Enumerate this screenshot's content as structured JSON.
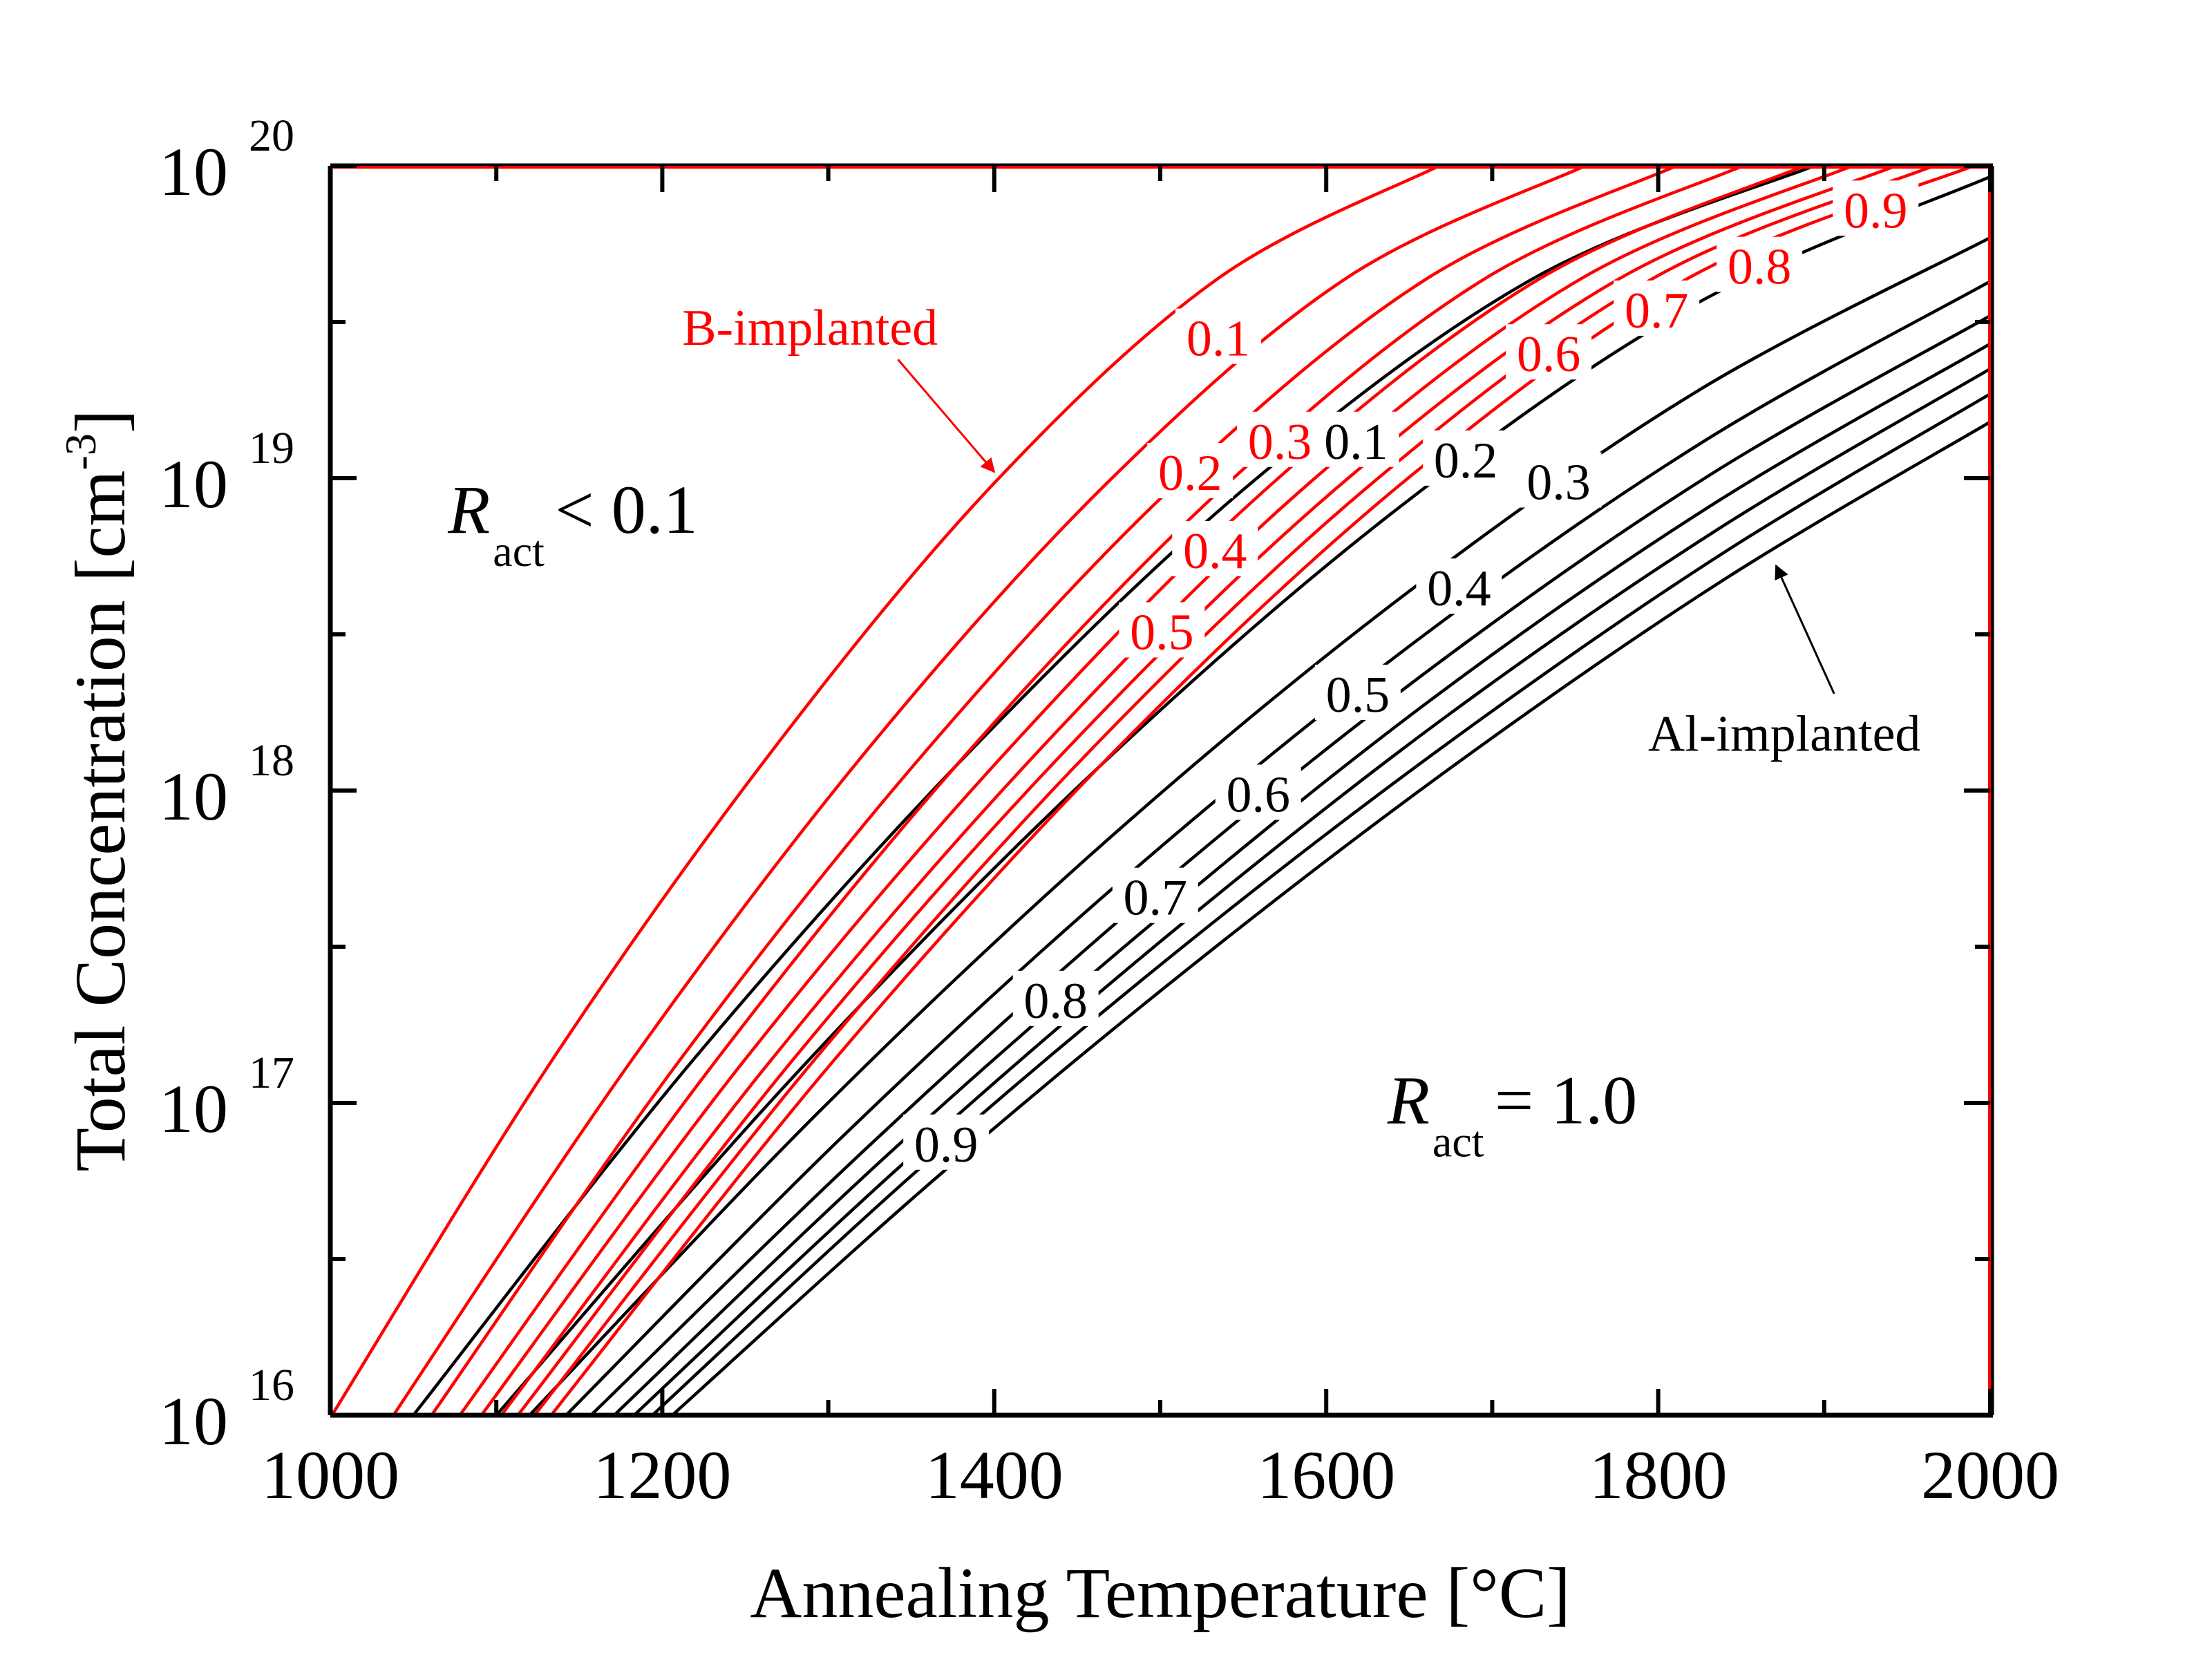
{
  "chart_data": {
    "type": "line",
    "subtype": "contour",
    "title": "",
    "xlabel": "Annealing Temperature [°C]",
    "ylabel_main": "Total Concentration [cm",
    "ylabel_sup": "-3",
    "ylabel_close": "]",
    "xlim": [
      1000,
      2000
    ],
    "ylim_log10": [
      16,
      20
    ],
    "yscale": "log",
    "grid": false,
    "x_ticks": [
      1000,
      1200,
      1400,
      1600,
      1800,
      2000
    ],
    "x_tick_labels": [
      "1000",
      "1200",
      "1400",
      "1600",
      "1800",
      "2000"
    ],
    "y_ticks_log10": [
      16,
      17,
      18,
      19,
      20
    ],
    "y_tick_base": "10",
    "y_tick_exponents": [
      "16",
      "17",
      "18",
      "19",
      "20"
    ],
    "colors": {
      "B": "#ff0000",
      "Al": "#000000",
      "axis": "#000000"
    },
    "series": [
      {
        "name": "B-implanted",
        "color": "#ff0000",
        "contours": [
          {
            "level": "0.1",
            "points": [
              [
                1001,
                16
              ],
              [
                1134,
                17.14
              ],
              [
                1268,
                18.14
              ],
              [
                1401,
                18.99
              ],
              [
                1535,
                19.64
              ],
              [
                1668,
                20
              ]
            ],
            "label_at": [
              1535,
              19.45
            ]
          },
          {
            "level": "0.2",
            "points": [
              [
                1038,
                16
              ],
              [
                1182,
                17.14
              ],
              [
                1325,
                18.14
              ],
              [
                1469,
                18.99
              ],
              [
                1612,
                19.64
              ],
              [
                1756,
                20
              ]
            ],
            "label_at": [
              1518,
              19.02
            ]
          },
          {
            "level": "0.3",
            "points": [
              [
                1061,
                16
              ],
              [
                1211,
                17.14
              ],
              [
                1361,
                18.14
              ],
              [
                1511,
                18.99
              ],
              [
                1661,
                19.64
              ],
              [
                1811,
                20
              ]
            ],
            "label_at": [
              1572,
              19.12
            ]
          },
          {
            "level": "0.4",
            "points": [
              [
                1078,
                16
              ],
              [
                1233,
                17.14
              ],
              [
                1387,
                18.14
              ],
              [
                1542,
                18.99
              ],
              [
                1696,
                19.64
              ],
              [
                1851,
                20
              ]
            ],
            "label_at": [
              1533,
              18.77
            ]
          },
          {
            "level": "0.5",
            "points": [
              [
                1091,
                16
              ],
              [
                1250,
                17.14
              ],
              [
                1410,
                18.14
              ],
              [
                1569,
                18.99
              ],
              [
                1729,
                19.64
              ],
              [
                1888,
                20
              ]
            ],
            "label_at": [
              1501,
              18.51
            ]
          },
          {
            "level": "0.6",
            "points": [
              [
                1103,
                16
              ],
              [
                1266,
                17.14
              ],
              [
                1429,
                18.14
              ],
              [
                1591,
                18.99
              ],
              [
                1754,
                19.64
              ],
              [
                1917,
                20
              ]
            ],
            "label_at": [
              1734,
              19.4
            ]
          },
          {
            "level": "0.7",
            "points": [
              [
                1113,
                16
              ],
              [
                1279,
                17.14
              ],
              [
                1445,
                18.14
              ],
              [
                1611,
                18.99
              ],
              [
                1777,
                19.64
              ],
              [
                1943,
                20
              ]
            ],
            "label_at": [
              1799,
              19.54
            ]
          },
          {
            "level": "0.8",
            "points": [
              [
                1123,
                16
              ],
              [
                1292,
                17.14
              ],
              [
                1460,
                18.14
              ],
              [
                1629,
                18.99
              ],
              [
                1797,
                19.64
              ],
              [
                1966,
                20
              ]
            ],
            "label_at": [
              1861,
              19.68
            ]
          },
          {
            "level": "0.9",
            "points": [
              [
                1133,
                16
              ],
              [
                1304,
                17.14
              ],
              [
                1475,
                18.14
              ],
              [
                1647,
                18.99
              ],
              [
                1818,
                19.64
              ],
              [
                1990,
                20
              ]
            ],
            "label_at": [
              1931,
              19.86
            ]
          }
        ]
      },
      {
        "name": "Al-implanted",
        "color": "#000000",
        "contours": [
          {
            "level": "0.1",
            "points": [
              [
                1050,
                16
              ],
              [
                1219,
                17.14
              ],
              [
                1388,
                18.14
              ],
              [
                1556,
                18.99
              ],
              [
                1725,
                19.64
              ],
              [
                1894,
                20
              ]
            ],
            "label_at": [
              1618,
              19.12
            ]
          },
          {
            "level": "0.2",
            "points": [
              [
                1100,
                16
              ],
              [
                1280,
                17.09
              ],
              [
                1460,
                18.06
              ],
              [
                1640,
                18.89
              ],
              [
                1820,
                19.55
              ],
              [
                2000,
                19.965
              ]
            ],
            "label_at": [
              1684,
              19.06
            ]
          },
          {
            "level": "0.3",
            "points": [
              [
                1120,
                16
              ],
              [
                1296,
                16.98
              ],
              [
                1472,
                17.86
              ],
              [
                1648,
                18.63
              ],
              [
                1824,
                19.28
              ],
              [
                2000,
                19.77
              ]
            ],
            "label_at": [
              1740,
              18.99
            ]
          },
          {
            "level": "0.4",
            "points": [
              [
                1142,
                16
              ],
              [
                1314,
                16.92
              ],
              [
                1485,
                17.75
              ],
              [
                1657,
                18.49
              ],
              [
                1828,
                19.12
              ],
              [
                2000,
                19.63
              ]
            ],
            "label_at": [
              1680,
              18.65
            ]
          },
          {
            "level": "0.5",
            "points": [
              [
                1157,
                16
              ],
              [
                1326,
                16.87
              ],
              [
                1494,
                17.67
              ],
              [
                1663,
                18.39
              ],
              [
                1831,
                19.01
              ],
              [
                2000,
                19.52
              ]
            ],
            "label_at": [
              1619,
              18.31
            ]
          },
          {
            "level": "0.6",
            "points": [
              [
                1171,
                16
              ],
              [
                1337,
                16.84
              ],
              [
                1503,
                17.61
              ],
              [
                1668,
                18.31
              ],
              [
                1834,
                18.92
              ],
              [
                2000,
                19.43
              ]
            ],
            "label_at": [
              1559,
              17.99
            ]
          },
          {
            "level": "0.7",
            "points": [
              [
                1183,
                16
              ],
              [
                1346,
                16.81
              ],
              [
                1510,
                17.56
              ],
              [
                1673,
                18.24
              ],
              [
                1837,
                18.84
              ],
              [
                2000,
                19.35
              ]
            ],
            "label_at": [
              1497,
              17.66
            ]
          },
          {
            "level": "0.8",
            "points": [
              [
                1194,
                16
              ],
              [
                1355,
                16.79
              ],
              [
                1516,
                17.51
              ],
              [
                1678,
                18.17
              ],
              [
                1839,
                18.76
              ],
              [
                2000,
                19.27
              ]
            ],
            "label_at": [
              1437,
              17.33
            ]
          },
          {
            "level": "0.9",
            "points": [
              [
                1206,
                16
              ],
              [
                1365,
                16.76
              ],
              [
                1524,
                17.46
              ],
              [
                1682,
                18.1
              ],
              [
                1841,
                18.68
              ],
              [
                2000,
                19.18
              ]
            ],
            "label_at": [
              1371,
              16.87
            ]
          }
        ]
      }
    ],
    "annotations": [
      {
        "id": "b-implanted",
        "text": "B-implanted",
        "color": "#ff0000",
        "at": [
          1289,
          19.48
        ],
        "arrow_from": [
          1342,
          19.38
        ],
        "arrow_to": [
          1400,
          19.02
        ]
      },
      {
        "id": "al-implanted",
        "text": "Al-implanted",
        "color": "#000000",
        "at": [
          1876,
          18.18
        ],
        "arrow_from": [
          1906,
          18.31
        ],
        "arrow_to": [
          1871,
          18.72
        ]
      }
    ],
    "regions": [
      {
        "id": "low",
        "symbol": "R",
        "subscript": "act",
        "relation": "< 0.1",
        "at": [
          1150,
          18.9
        ]
      },
      {
        "id": "high",
        "symbol": "R",
        "subscript": "act",
        "relation": "= 1.0",
        "at": [
          1716,
          17.01
        ]
      }
    ]
  }
}
